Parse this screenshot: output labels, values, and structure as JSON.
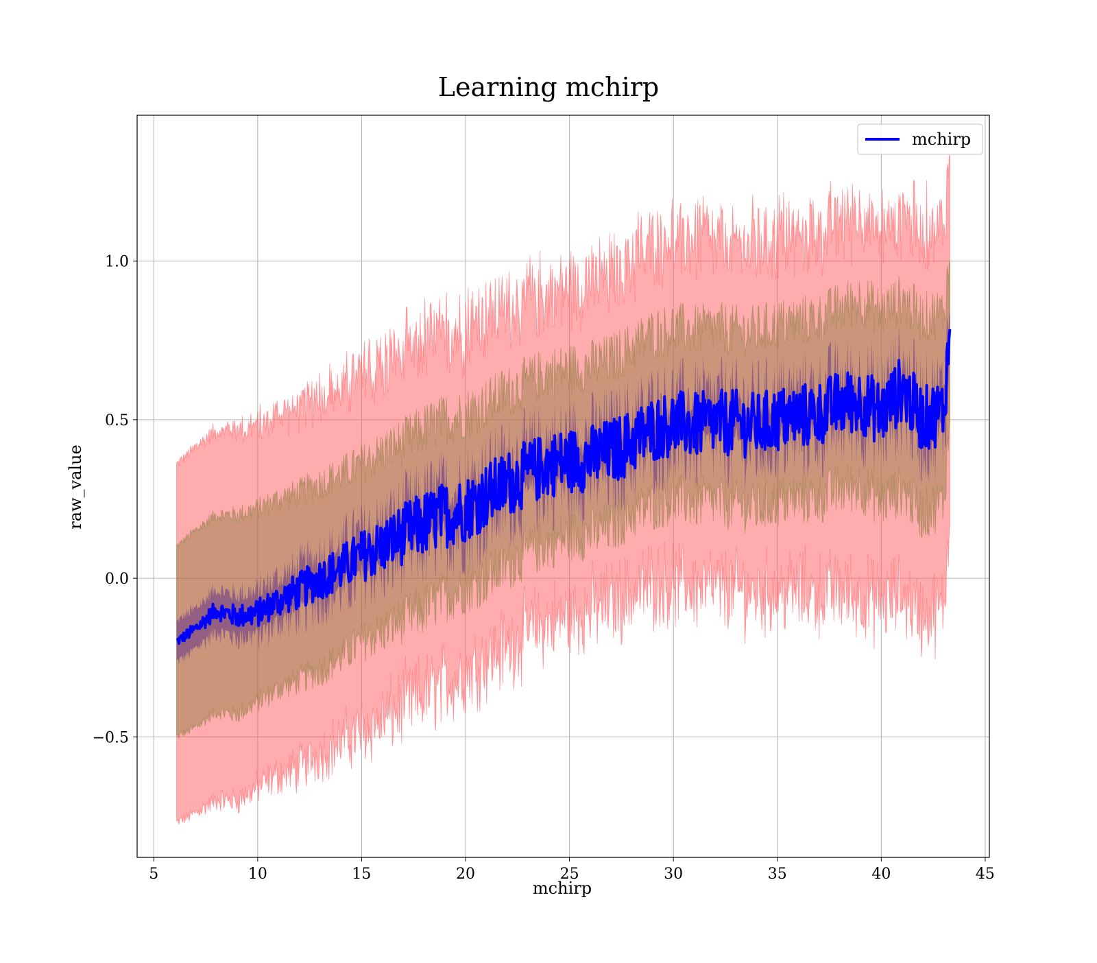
{
  "chart_data": {
    "type": "line",
    "title": "Learning mchirp",
    "xlabel": "mchirp",
    "ylabel": "raw_value",
    "xlim": [
      4.2,
      45.2
    ],
    "ylim": [
      -0.88,
      1.46
    ],
    "xticks": [
      5,
      10,
      15,
      20,
      25,
      30,
      35,
      40,
      45
    ],
    "xtick_labels": [
      "5",
      "10",
      "15",
      "20",
      "25",
      "30",
      "35",
      "40",
      "45"
    ],
    "yticks": [
      -0.5,
      0.0,
      0.5,
      1.0
    ],
    "ytick_labels": [
      "−0.5",
      "0.0",
      "0.5",
      "1.0"
    ],
    "grid": true,
    "legend_position": "upper right",
    "colors": {
      "mean_line": "#0000ff",
      "band_2sigma": "#ff5a5f",
      "band_1sigma": "#8a7a3a",
      "band_inner": "#5a2a8a"
    },
    "x": [
      6.1,
      7.0,
      8.0,
      9.0,
      10.0,
      11.0,
      12.0,
      13.0,
      14.0,
      15.0,
      16.0,
      17.0,
      18.0,
      19.0,
      20.0,
      21.0,
      22.0,
      23.0,
      24.0,
      25.0,
      26.0,
      27.0,
      28.0,
      29.0,
      30.0,
      31.0,
      32.0,
      33.0,
      34.0,
      35.0,
      36.0,
      37.0,
      38.0,
      39.0,
      40.0,
      41.0,
      42.0,
      43.0,
      43.3
    ],
    "series": [
      {
        "name": "mchirp",
        "values": [
          -0.2,
          -0.16,
          -0.1,
          -0.12,
          -0.11,
          -0.07,
          -0.04,
          0.0,
          0.03,
          0.07,
          0.1,
          0.14,
          0.17,
          0.2,
          0.22,
          0.26,
          0.3,
          0.33,
          0.36,
          0.37,
          0.38,
          0.4,
          0.43,
          0.47,
          0.49,
          0.48,
          0.49,
          0.49,
          0.48,
          0.5,
          0.51,
          0.52,
          0.55,
          0.56,
          0.52,
          0.6,
          0.5,
          0.53,
          0.78
        ],
        "lower_2sigma": [
          -0.77,
          -0.74,
          -0.7,
          -0.7,
          -0.66,
          -0.62,
          -0.6,
          -0.55,
          -0.52,
          -0.48,
          -0.45,
          -0.4,
          -0.37,
          -0.33,
          -0.3,
          -0.25,
          -0.22,
          -0.17,
          -0.14,
          -0.12,
          -0.1,
          -0.08,
          -0.05,
          -0.02,
          -0.02,
          -0.03,
          -0.03,
          -0.04,
          -0.05,
          -0.04,
          -0.04,
          -0.05,
          -0.04,
          -0.06,
          -0.08,
          -0.05,
          -0.12,
          -0.1,
          0.2
        ],
        "upper_2sigma": [
          0.36,
          0.41,
          0.47,
          0.47,
          0.48,
          0.52,
          0.54,
          0.57,
          0.6,
          0.63,
          0.67,
          0.71,
          0.74,
          0.76,
          0.78,
          0.82,
          0.85,
          0.88,
          0.9,
          0.92,
          0.93,
          0.95,
          1.0,
          1.05,
          1.07,
          1.06,
          1.06,
          1.05,
          1.05,
          1.07,
          1.08,
          1.09,
          1.12,
          1.15,
          1.1,
          1.15,
          1.1,
          1.12,
          1.3
        ],
        "lower_1sigma": [
          -0.5,
          -0.47,
          -0.42,
          -0.43,
          -0.39,
          -0.35,
          -0.32,
          -0.29,
          -0.25,
          -0.2,
          -0.17,
          -0.13,
          -0.1,
          -0.06,
          -0.03,
          0.0,
          0.04,
          0.08,
          0.11,
          0.13,
          0.14,
          0.16,
          0.2,
          0.23,
          0.25,
          0.24,
          0.24,
          0.23,
          0.22,
          0.24,
          0.25,
          0.25,
          0.28,
          0.29,
          0.24,
          0.28,
          0.2,
          0.24,
          0.5
        ],
        "upper_1sigma": [
          0.1,
          0.15,
          0.2,
          0.2,
          0.22,
          0.25,
          0.27,
          0.3,
          0.33,
          0.36,
          0.4,
          0.43,
          0.47,
          0.5,
          0.52,
          0.55,
          0.59,
          0.62,
          0.65,
          0.66,
          0.67,
          0.69,
          0.73,
          0.77,
          0.79,
          0.78,
          0.79,
          0.78,
          0.78,
          0.8,
          0.81,
          0.82,
          0.85,
          0.88,
          0.84,
          0.88,
          0.82,
          0.84,
          1.0
        ]
      }
    ]
  },
  "legend": {
    "label": "mchirp"
  }
}
